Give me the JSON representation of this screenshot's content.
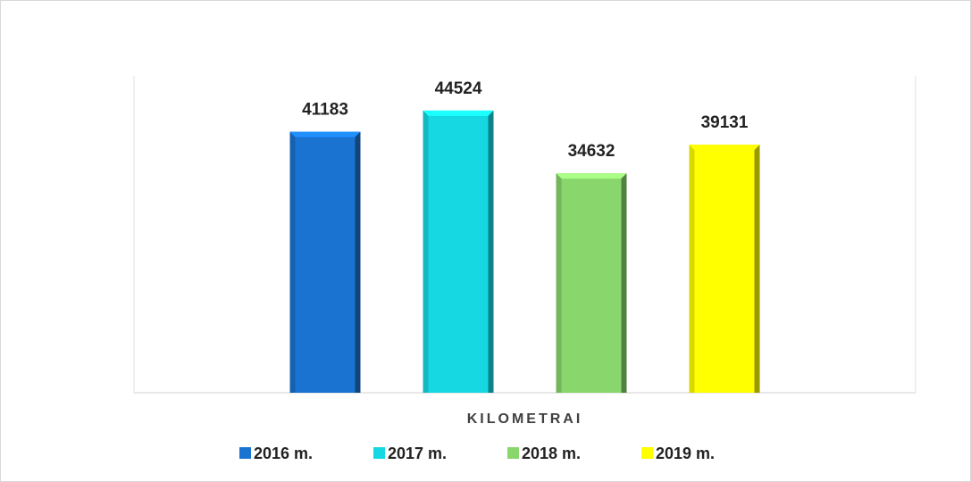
{
  "chart_data": {
    "type": "bar",
    "categories": [
      "KILOMETRAI"
    ],
    "series": [
      {
        "name": "2016 m.",
        "color": "#1a73d0",
        "values": [
          41183
        ]
      },
      {
        "name": "2017 m.",
        "color": "#16d8e2",
        "values": [
          44524
        ]
      },
      {
        "name": "2018 m.",
        "color": "#88d66c",
        "values": [
          34632
        ]
      },
      {
        "name": "2019 m.",
        "color": "#ffff00",
        "values": [
          39131
        ]
      }
    ],
    "ylim": [
      0,
      50000
    ],
    "legend": "bottom"
  }
}
